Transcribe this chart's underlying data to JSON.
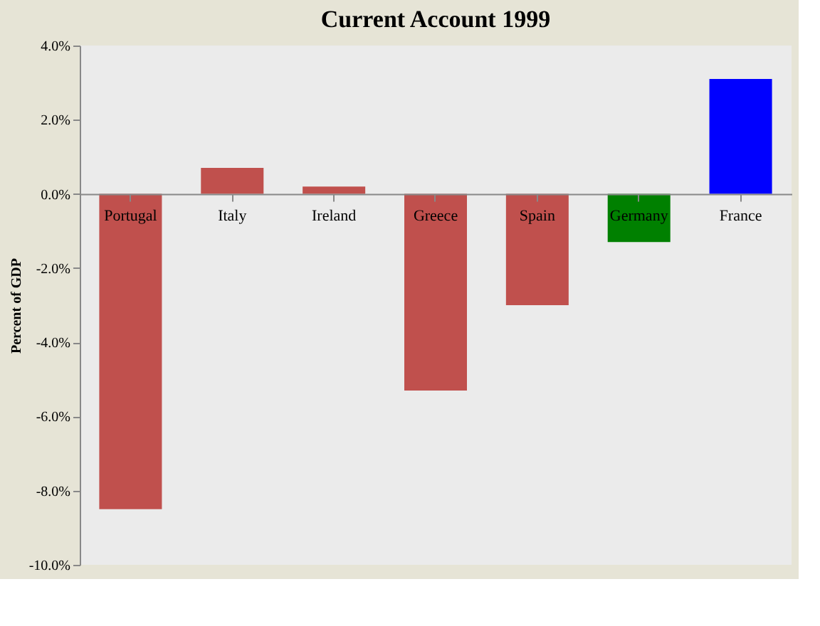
{
  "chart_data": {
    "type": "bar",
    "title": "Current Account 1999",
    "ylabel": "Percent of GDP",
    "categories": [
      "Portugal",
      "Italy",
      "Ireland",
      "Greece",
      "Spain",
      "Germany",
      "France"
    ],
    "values": [
      -8.5,
      0.7,
      0.2,
      -5.3,
      -3.0,
      -1.3,
      3.1
    ],
    "colors": [
      "#c0504d",
      "#c0504d",
      "#c0504d",
      "#c0504d",
      "#c0504d",
      "#008000",
      "#0000ff"
    ],
    "ylim": [
      -10,
      4
    ],
    "yticks": [
      {
        "value": -10,
        "label": "-10.0%"
      },
      {
        "value": -8,
        "label": "-8.0%"
      },
      {
        "value": -6,
        "label": "-6.0%"
      },
      {
        "value": -4,
        "label": "-4.0%"
      },
      {
        "value": -2,
        "label": "-2.0%"
      },
      {
        "value": 0,
        "label": "0.0%"
      },
      {
        "value": 2,
        "label": "2.0%"
      },
      {
        "value": 4,
        "label": "4.0%"
      }
    ],
    "grid": false
  }
}
